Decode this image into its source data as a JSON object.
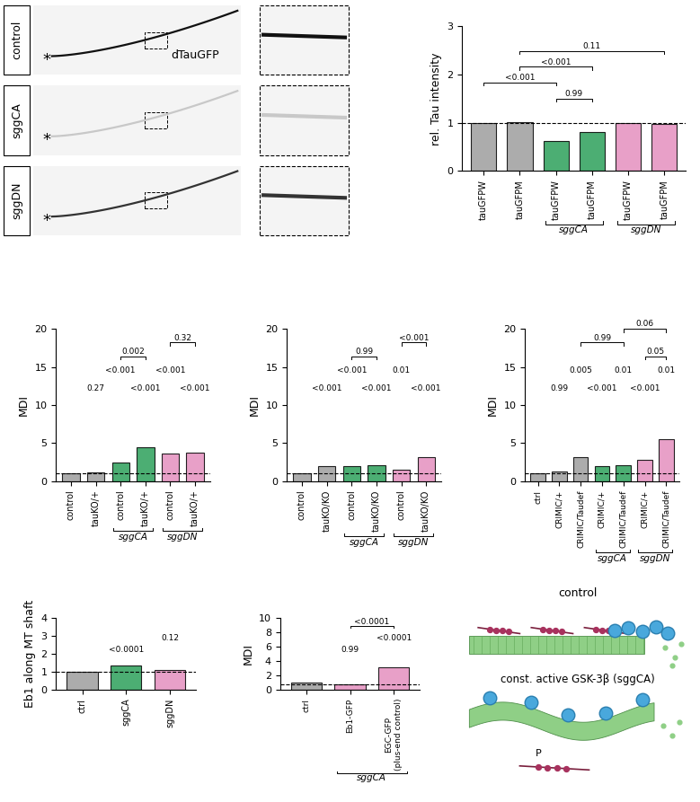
{
  "image_panel": {
    "rows": [
      "control",
      "sggCA",
      "sggDN"
    ],
    "label": "dTauGFP",
    "soma_mark": "*"
  },
  "chart_data": [
    {
      "type": "bar",
      "y_label": "rel. Tau intensity",
      "categories": [
        "tauGFPW",
        "tauGFPM",
        "tauGFPW",
        "tauGFPM",
        "tauGFPW",
        "tauGFPM"
      ],
      "values": [
        1.0,
        1.02,
        0.62,
        0.8,
        1.0,
        0.97
      ],
      "colors": [
        "#9e9e9e",
        "#9e9e9e",
        "#2ca05a",
        "#2ca05a",
        "#e58fbf",
        "#e58fbf"
      ],
      "ylim": [
        0,
        3
      ],
      "yticks": [
        0,
        1,
        2,
        3
      ],
      "reference_line": 1,
      "groups": [
        {
          "label": "sggCA",
          "from": 2,
          "to": 3
        },
        {
          "label": "sggDN",
          "from": 4,
          "to": 5
        }
      ],
      "p_values": [],
      "brackets": [
        {
          "from": 2,
          "to": 3,
          "label": "0.99"
        },
        {
          "from": 0,
          "to": 2,
          "label": "<0.001"
        },
        {
          "from": 1,
          "to": 3,
          "label": "<0.001"
        },
        {
          "from": 1,
          "to": 5,
          "label": "0.11"
        }
      ]
    },
    {
      "type": "bar",
      "y_label": "MDI",
      "categories": [
        "control",
        "tauKO/+",
        "control",
        "tauKO/+",
        "control",
        "tauKO/+"
      ],
      "values": [
        1.0,
        1.2,
        2.4,
        4.5,
        3.6,
        3.8
      ],
      "colors": [
        "#9e9e9e",
        "#9e9e9e",
        "#2ca05a",
        "#2ca05a",
        "#e58fbf",
        "#e58fbf"
      ],
      "ylim": [
        0,
        20
      ],
      "yticks": [
        0,
        5,
        10,
        15,
        20
      ],
      "reference_line": 1,
      "groups": [
        {
          "label": "sggCA",
          "from": 2,
          "to": 3
        },
        {
          "label": "sggDN",
          "from": 4,
          "to": 5
        }
      ],
      "p_values": [
        {
          "bar": 1,
          "label": "0.27"
        },
        {
          "bar": 2,
          "label": "<0.001"
        },
        {
          "bar": 3,
          "label": "<0.001"
        },
        {
          "bar": 4,
          "label": "<0.001"
        },
        {
          "bar": 5,
          "label": "<0.001"
        }
      ],
      "brackets": [
        {
          "from": 2,
          "to": 3,
          "label": "0.002"
        },
        {
          "from": 4,
          "to": 5,
          "label": "0.32"
        }
      ]
    },
    {
      "type": "bar",
      "y_label": "MDI",
      "categories": [
        "control",
        "tauKO/KO",
        "control",
        "tauKO/KO",
        "control",
        "tauKO/KO"
      ],
      "values": [
        1.0,
        2.0,
        2.0,
        2.1,
        1.5,
        3.2
      ],
      "colors": [
        "#9e9e9e",
        "#9e9e9e",
        "#2ca05a",
        "#2ca05a",
        "#e58fbf",
        "#e58fbf"
      ],
      "ylim": [
        0,
        20
      ],
      "yticks": [
        0,
        5,
        10,
        15,
        20
      ],
      "reference_line": 1,
      "groups": [
        {
          "label": "sggCA",
          "from": 2,
          "to": 3
        },
        {
          "label": "sggDN",
          "from": 4,
          "to": 5
        }
      ],
      "p_values": [
        {
          "bar": 1,
          "label": "<0.001"
        },
        {
          "bar": 2,
          "label": "<0.001"
        },
        {
          "bar": 3,
          "label": "<0.001"
        },
        {
          "bar": 4,
          "label": "0.01"
        },
        {
          "bar": 5,
          "label": "<0.001"
        }
      ],
      "brackets": [
        {
          "from": 2,
          "to": 3,
          "label": "0.99"
        },
        {
          "from": 4,
          "to": 5,
          "label": "<0.001"
        }
      ]
    },
    {
      "type": "bar",
      "y_label": "MDI",
      "categories": [
        "ctrl",
        "CRIMIC/+",
        "CRIMIC/Taudef",
        "CRIMIC/+",
        "CRIMIC/Taudef",
        "CRIMIC/+",
        "CRIMIC/Taudef"
      ],
      "values": [
        1.0,
        1.3,
        3.2,
        2.0,
        2.1,
        2.8,
        5.5
      ],
      "colors": [
        "#9e9e9e",
        "#9e9e9e",
        "#9e9e9e",
        "#2ca05a",
        "#2ca05a",
        "#e58fbf",
        "#e58fbf"
      ],
      "ylim": [
        0,
        20
      ],
      "yticks": [
        0,
        5,
        10,
        15,
        20
      ],
      "reference_line": 1,
      "groups": [
        {
          "label": "sggCA",
          "from": 3,
          "to": 4
        },
        {
          "label": "sggDN",
          "from": 5,
          "to": 6
        }
      ],
      "p_values": [
        {
          "bar": 1,
          "label": "0.99"
        },
        {
          "bar": 2,
          "label": "0.005"
        },
        {
          "bar": 3,
          "label": "<0.001"
        },
        {
          "bar": 4,
          "label": "0.01"
        },
        {
          "bar": 5,
          "label": "<0.001"
        },
        {
          "bar": 6,
          "label": "0.01"
        }
      ],
      "brackets": [
        {
          "from": 5,
          "to": 6,
          "label": "0.05"
        },
        {
          "from": 2,
          "to": 4,
          "label": "0.99"
        },
        {
          "from": 4,
          "to": 6,
          "label": "0.06"
        }
      ]
    },
    {
      "type": "bar",
      "y_label": "Eb1 along MT shaft",
      "categories": [
        "ctrl",
        "sggCA",
        "sggDN"
      ],
      "values": [
        1.0,
        1.35,
        1.1
      ],
      "colors": [
        "#9e9e9e",
        "#2ca05a",
        "#e58fbf"
      ],
      "ylim": [
        0,
        4
      ],
      "yticks": [
        0,
        1,
        2,
        3,
        4
      ],
      "reference_line": 1,
      "groups": [],
      "p_values": [
        {
          "bar": 1,
          "label": "<0.0001"
        },
        {
          "bar": 2,
          "label": "0.12"
        }
      ],
      "brackets": []
    },
    {
      "type": "bar",
      "y_label": "MDI",
      "categories": [
        "ctrl",
        "Eb1-GFP",
        "EGC-GFP\n(plus-end control)"
      ],
      "values": [
        1.0,
        0.8,
        3.1
      ],
      "colors": [
        "#9e9e9e",
        "#e58fbf",
        "#e58fbf"
      ],
      "ylim": [
        0,
        10
      ],
      "yticks": [
        0,
        2,
        4,
        6,
        8,
        10
      ],
      "reference_line": 0.7,
      "groups": [
        {
          "label": "sggCA",
          "from": 1,
          "to": 2
        }
      ],
      "p_values": [
        {
          "bar": 1,
          "label": "0.99"
        },
        {
          "bar": 2,
          "label": "<0.0001"
        }
      ],
      "brackets": [
        {
          "from": 1,
          "to": 2,
          "label": "<0.0001"
        }
      ]
    }
  ],
  "diagram": {
    "top_label": "control",
    "bottom_label": "const. active GSK-3β (sggCA)",
    "phospho_label": "P"
  }
}
